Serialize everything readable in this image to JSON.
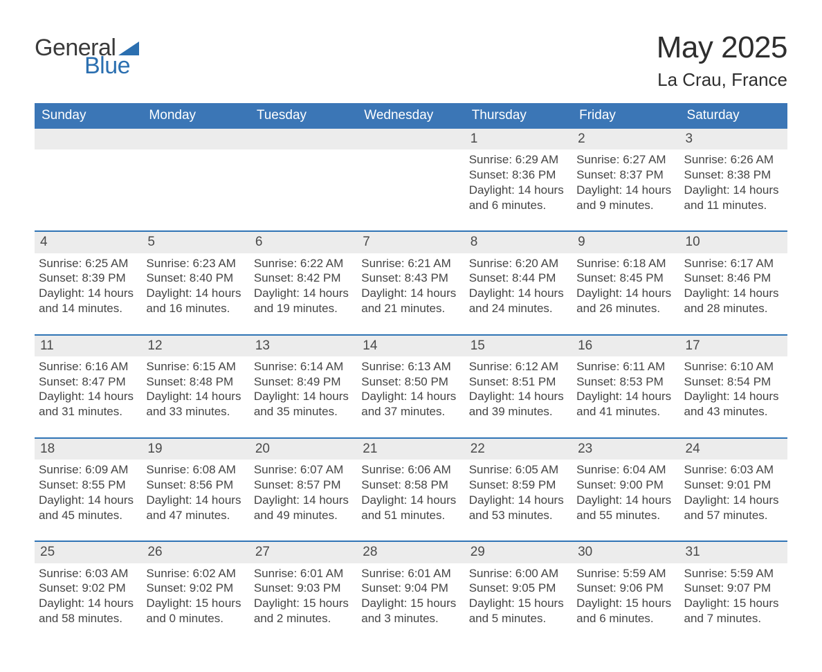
{
  "brand": {
    "word1": "General",
    "word2": "Blue"
  },
  "title": {
    "month_year": "May 2025",
    "location": "La Crau, France"
  },
  "colors": {
    "header_blue": "#3b76b6",
    "rule_blue": "#2f74b5",
    "daynum_bg": "#ececec",
    "logo_blue": "#2b6fb0",
    "logo_dark": "#3a3a3a",
    "text": "#3a3a3a",
    "background": "#ffffff"
  },
  "weekdays": [
    "Sunday",
    "Monday",
    "Tuesday",
    "Wednesday",
    "Thursday",
    "Friday",
    "Saturday"
  ],
  "calendar": {
    "first_weekday_index": 4,
    "days": [
      {
        "n": 1,
        "sunrise": "6:29 AM",
        "sunset": "8:36 PM",
        "daylight": "14 hours and 6 minutes."
      },
      {
        "n": 2,
        "sunrise": "6:27 AM",
        "sunset": "8:37 PM",
        "daylight": "14 hours and 9 minutes."
      },
      {
        "n": 3,
        "sunrise": "6:26 AM",
        "sunset": "8:38 PM",
        "daylight": "14 hours and 11 minutes."
      },
      {
        "n": 4,
        "sunrise": "6:25 AM",
        "sunset": "8:39 PM",
        "daylight": "14 hours and 14 minutes."
      },
      {
        "n": 5,
        "sunrise": "6:23 AM",
        "sunset": "8:40 PM",
        "daylight": "14 hours and 16 minutes."
      },
      {
        "n": 6,
        "sunrise": "6:22 AM",
        "sunset": "8:42 PM",
        "daylight": "14 hours and 19 minutes."
      },
      {
        "n": 7,
        "sunrise": "6:21 AM",
        "sunset": "8:43 PM",
        "daylight": "14 hours and 21 minutes."
      },
      {
        "n": 8,
        "sunrise": "6:20 AM",
        "sunset": "8:44 PM",
        "daylight": "14 hours and 24 minutes."
      },
      {
        "n": 9,
        "sunrise": "6:18 AM",
        "sunset": "8:45 PM",
        "daylight": "14 hours and 26 minutes."
      },
      {
        "n": 10,
        "sunrise": "6:17 AM",
        "sunset": "8:46 PM",
        "daylight": "14 hours and 28 minutes."
      },
      {
        "n": 11,
        "sunrise": "6:16 AM",
        "sunset": "8:47 PM",
        "daylight": "14 hours and 31 minutes."
      },
      {
        "n": 12,
        "sunrise": "6:15 AM",
        "sunset": "8:48 PM",
        "daylight": "14 hours and 33 minutes."
      },
      {
        "n": 13,
        "sunrise": "6:14 AM",
        "sunset": "8:49 PM",
        "daylight": "14 hours and 35 minutes."
      },
      {
        "n": 14,
        "sunrise": "6:13 AM",
        "sunset": "8:50 PM",
        "daylight": "14 hours and 37 minutes."
      },
      {
        "n": 15,
        "sunrise": "6:12 AM",
        "sunset": "8:51 PM",
        "daylight": "14 hours and 39 minutes."
      },
      {
        "n": 16,
        "sunrise": "6:11 AM",
        "sunset": "8:53 PM",
        "daylight": "14 hours and 41 minutes."
      },
      {
        "n": 17,
        "sunrise": "6:10 AM",
        "sunset": "8:54 PM",
        "daylight": "14 hours and 43 minutes."
      },
      {
        "n": 18,
        "sunrise": "6:09 AM",
        "sunset": "8:55 PM",
        "daylight": "14 hours and 45 minutes."
      },
      {
        "n": 19,
        "sunrise": "6:08 AM",
        "sunset": "8:56 PM",
        "daylight": "14 hours and 47 minutes."
      },
      {
        "n": 20,
        "sunrise": "6:07 AM",
        "sunset": "8:57 PM",
        "daylight": "14 hours and 49 minutes."
      },
      {
        "n": 21,
        "sunrise": "6:06 AM",
        "sunset": "8:58 PM",
        "daylight": "14 hours and 51 minutes."
      },
      {
        "n": 22,
        "sunrise": "6:05 AM",
        "sunset": "8:59 PM",
        "daylight": "14 hours and 53 minutes."
      },
      {
        "n": 23,
        "sunrise": "6:04 AM",
        "sunset": "9:00 PM",
        "daylight": "14 hours and 55 minutes."
      },
      {
        "n": 24,
        "sunrise": "6:03 AM",
        "sunset": "9:01 PM",
        "daylight": "14 hours and 57 minutes."
      },
      {
        "n": 25,
        "sunrise": "6:03 AM",
        "sunset": "9:02 PM",
        "daylight": "14 hours and 58 minutes."
      },
      {
        "n": 26,
        "sunrise": "6:02 AM",
        "sunset": "9:02 PM",
        "daylight": "15 hours and 0 minutes."
      },
      {
        "n": 27,
        "sunrise": "6:01 AM",
        "sunset": "9:03 PM",
        "daylight": "15 hours and 2 minutes."
      },
      {
        "n": 28,
        "sunrise": "6:01 AM",
        "sunset": "9:04 PM",
        "daylight": "15 hours and 3 minutes."
      },
      {
        "n": 29,
        "sunrise": "6:00 AM",
        "sunset": "9:05 PM",
        "daylight": "15 hours and 5 minutes."
      },
      {
        "n": 30,
        "sunrise": "5:59 AM",
        "sunset": "9:06 PM",
        "daylight": "15 hours and 6 minutes."
      },
      {
        "n": 31,
        "sunrise": "5:59 AM",
        "sunset": "9:07 PM",
        "daylight": "15 hours and 7 minutes."
      }
    ],
    "labels": {
      "sunrise": "Sunrise",
      "sunset": "Sunset",
      "daylight": "Daylight"
    }
  }
}
